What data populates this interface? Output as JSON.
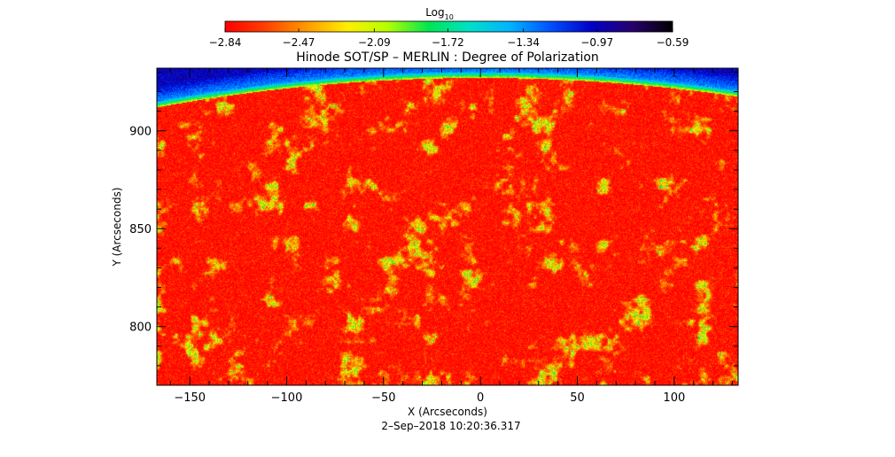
{
  "chart_data": {
    "type": "heatmap",
    "title": "Hinode SOT/SP – MERLIN : Degree of Polarization",
    "xlabel": "X (Arcseconds)",
    "ylabel": "Y (Arcseconds)",
    "timestamp": "2–Sep–2018 10:20:36.317",
    "xlim": [
      -167,
      133
    ],
    "ylim": [
      770,
      932
    ],
    "x_ticks": [
      -150,
      -100,
      -50,
      0,
      50,
      100
    ],
    "x_tick_labels": [
      "−150",
      "−100",
      "−50",
      "0",
      "50",
      "100"
    ],
    "y_ticks": [
      800,
      850,
      900
    ],
    "y_tick_labels": [
      "800",
      "850",
      "900"
    ],
    "colorbar": {
      "label_base": "Log",
      "label_sub": "10",
      "range": [
        -2.84,
        -0.59
      ],
      "ticks": [
        -2.84,
        -2.47,
        -2.09,
        -1.72,
        -1.34,
        -0.97,
        -0.59
      ],
      "tick_labels": [
        "−2.84",
        "−2.47",
        "−2.09",
        "−1.72",
        "−1.34",
        "−0.97",
        "−0.59"
      ],
      "colormap": [
        "#ff0000",
        "#ff4000",
        "#ff9900",
        "#ffee00",
        "#b4ff00",
        "#00e650",
        "#00e0c8",
        "#00b4ff",
        "#0050ff",
        "#0000c8",
        "#28006e",
        "#000000"
      ]
    },
    "limb": {
      "center_x": 0,
      "center_y": -3,
      "radius": 933
    },
    "field_statistics": {
      "background_log_value": -2.84,
      "patch_log_range": [
        -2.47,
        -1.72
      ],
      "off_limb_log_range": [
        -1.34,
        -0.97
      ]
    },
    "grid": false,
    "legend": "colorbar-top"
  },
  "colors": {
    "axis": "#000000",
    "background": "#ffffff"
  }
}
